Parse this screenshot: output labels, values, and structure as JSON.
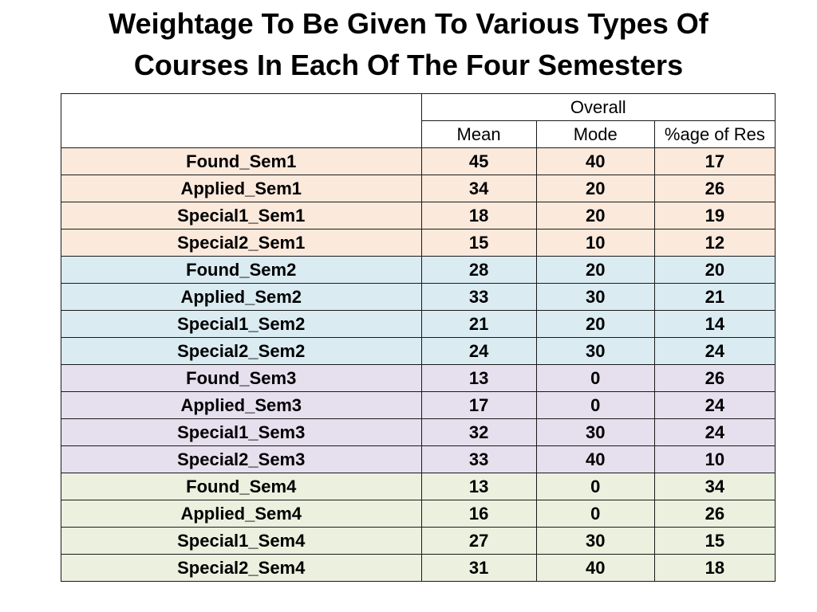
{
  "title": {
    "line1": "Weightage To Be Given To Various Types Of",
    "line2": "Courses In Each Of The Four Semesters"
  },
  "table": {
    "group_header": "Overall",
    "columns": [
      "Mean",
      "Mode",
      "%age of Res"
    ],
    "group_colors": [
      "#fbe9dc",
      "#daebf2",
      "#e5dfee",
      "#ebf0df"
    ],
    "rows": [
      {
        "label": "Found_Sem1",
        "mean": "45",
        "mode": "40",
        "pct": "17",
        "group": 1
      },
      {
        "label": "Applied_Sem1",
        "mean": "34",
        "mode": "20",
        "pct": "26",
        "group": 1
      },
      {
        "label": "Special1_Sem1",
        "mean": "18",
        "mode": "20",
        "pct": "19",
        "group": 1
      },
      {
        "label": "Special2_Sem1",
        "mean": "15",
        "mode": "10",
        "pct": "12",
        "group": 1
      },
      {
        "label": "Found_Sem2",
        "mean": "28",
        "mode": "20",
        "pct": "20",
        "group": 2
      },
      {
        "label": "Applied_Sem2",
        "mean": "33",
        "mode": "30",
        "pct": "21",
        "group": 2
      },
      {
        "label": "Special1_Sem2",
        "mean": "21",
        "mode": "20",
        "pct": "14",
        "group": 2
      },
      {
        "label": "Special2_Sem2",
        "mean": "24",
        "mode": "30",
        "pct": "24",
        "group": 2
      },
      {
        "label": "Found_Sem3",
        "mean": "13",
        "mode": "0",
        "pct": "26",
        "group": 3
      },
      {
        "label": "Applied_Sem3",
        "mean": "17",
        "mode": "0",
        "pct": "24",
        "group": 3
      },
      {
        "label": "Special1_Sem3",
        "mean": "32",
        "mode": "30",
        "pct": "24",
        "group": 3
      },
      {
        "label": "Special2_Sem3",
        "mean": "33",
        "mode": "40",
        "pct": "10",
        "group": 3
      },
      {
        "label": "Found_Sem4",
        "mean": "13",
        "mode": "0",
        "pct": "34",
        "group": 4
      },
      {
        "label": "Applied_Sem4",
        "mean": "16",
        "mode": "0",
        "pct": "26",
        "group": 4
      },
      {
        "label": "Special1_Sem4",
        "mean": "27",
        "mode": "30",
        "pct": "15",
        "group": 4
      },
      {
        "label": "Special2_Sem4",
        "mean": "31",
        "mode": "40",
        "pct": "18",
        "group": 4
      }
    ]
  }
}
